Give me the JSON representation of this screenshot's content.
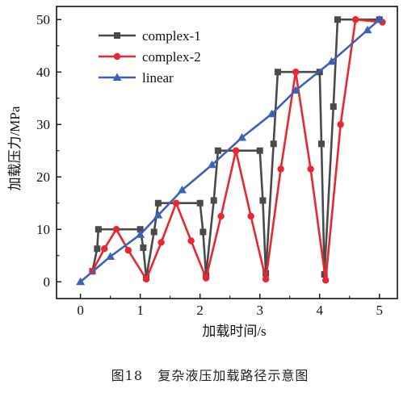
{
  "caption": {
    "number": "图18",
    "text": "复杂液压加载路径示意图"
  },
  "chart_data": {
    "type": "line",
    "title": "",
    "xlabel": "加载时间/s",
    "ylabel": "加载压力/MPa",
    "xlim": [
      -0.4,
      5.3
    ],
    "ylim": [
      -3.2,
      52.5
    ],
    "xticks": [
      0,
      1,
      2,
      3,
      4,
      5
    ],
    "yticks": [
      0,
      10,
      20,
      30,
      40,
      50
    ],
    "grid": false,
    "legend_position": "top-left",
    "series": [
      {
        "name": "complex-1",
        "color": "#4a4a4a",
        "marker": "square",
        "points": [
          [
            0.2,
            2
          ],
          [
            0.28,
            6.3
          ],
          [
            0.3,
            10
          ],
          [
            1.0,
            10
          ],
          [
            1.05,
            6.5
          ],
          [
            1.1,
            0.8
          ],
          [
            1.23,
            9.5
          ],
          [
            1.3,
            15
          ],
          [
            2.0,
            15
          ],
          [
            2.05,
            9.5
          ],
          [
            2.1,
            1.3
          ],
          [
            2.23,
            15.5
          ],
          [
            2.3,
            25
          ],
          [
            3.0,
            25
          ],
          [
            3.05,
            15.5
          ],
          [
            3.1,
            1.6
          ],
          [
            3.23,
            26.3
          ],
          [
            3.3,
            40
          ],
          [
            4.0,
            40
          ],
          [
            4.03,
            26.3
          ],
          [
            4.08,
            1.4
          ],
          [
            4.23,
            33.4
          ],
          [
            4.3,
            50
          ],
          [
            5.0,
            50
          ]
        ]
      },
      {
        "name": "complex-2",
        "color": "#e8272f",
        "marker": "circle",
        "points": [
          [
            0.2,
            2
          ],
          [
            0.4,
            6.3
          ],
          [
            0.6,
            10
          ],
          [
            0.8,
            6
          ],
          [
            1.1,
            0.5
          ],
          [
            1.35,
            7.5
          ],
          [
            1.6,
            15
          ],
          [
            1.85,
            7.8
          ],
          [
            2.1,
            0.7
          ],
          [
            2.35,
            12.5
          ],
          [
            2.6,
            25
          ],
          [
            2.85,
            12.5
          ],
          [
            3.1,
            0.5
          ],
          [
            3.35,
            21.5
          ],
          [
            3.6,
            40
          ],
          [
            3.85,
            21.5
          ],
          [
            4.1,
            0.3
          ],
          [
            4.35,
            30
          ],
          [
            4.6,
            50
          ],
          [
            5.05,
            49.5
          ]
        ]
      },
      {
        "name": "linear",
        "color": "#3a62b8",
        "marker": "triangle",
        "points": [
          [
            0,
            0
          ],
          [
            0.5,
            4.8
          ],
          [
            1.0,
            9
          ],
          [
            1.3,
            12.7
          ],
          [
            1.7,
            17.5
          ],
          [
            2.2,
            22.3
          ],
          [
            2.7,
            27.5
          ],
          [
            3.2,
            32
          ],
          [
            3.6,
            36.5
          ],
          [
            4.2,
            42
          ],
          [
            4.8,
            48
          ],
          [
            5.0,
            50
          ]
        ]
      }
    ]
  }
}
